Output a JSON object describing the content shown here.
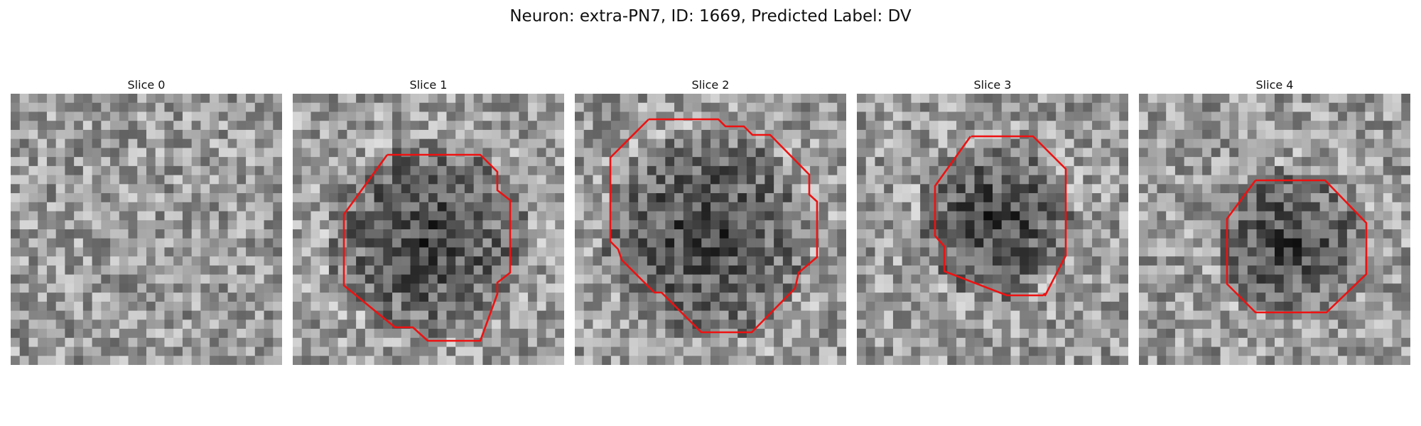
{
  "figure": {
    "title": "Neuron: extra-PN7, ID: 1669, Predicted Label: DV",
    "outline_color": "#ee1111"
  },
  "panels": [
    {
      "label": "Slice 0",
      "has_outline": false
    },
    {
      "label": "Slice 1",
      "has_outline": true
    },
    {
      "label": "Slice 2",
      "has_outline": true
    },
    {
      "label": "Slice 3",
      "has_outline": true
    },
    {
      "label": "Slice 4",
      "has_outline": true
    }
  ]
}
